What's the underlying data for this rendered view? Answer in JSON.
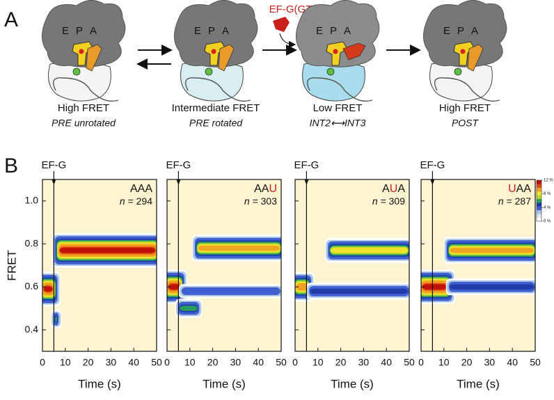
{
  "panel_a": {
    "label": "A",
    "factor": "EF-G(GTP)",
    "site_labels": [
      "E",
      "P",
      "A"
    ],
    "states": [
      {
        "fret": "High FRET",
        "state": "PRE unrotated"
      },
      {
        "fret": "Intermediate FRET",
        "state": "PRE rotated"
      },
      {
        "fret": "Low FRET",
        "state": "INT2⟷INT3"
      },
      {
        "fret": "High FRET",
        "state": "POST"
      }
    ]
  },
  "panel_b_label": "B",
  "colorbar": {
    "colors": [
      "#ffffff",
      "#dde8f4",
      "#a8c4e6",
      "#3d5fcf",
      "#1f3aa8",
      "#27a35a",
      "#b8d830",
      "#f2e52a",
      "#f0a020",
      "#e24a16",
      "#c0100a"
    ],
    "range": [
      0,
      12
    ],
    "ticks": [
      {
        "value": 12,
        "label": "12 %"
      },
      {
        "value": 8,
        "label": "8 %"
      },
      {
        "value": 4,
        "label": "4 %"
      },
      {
        "value": 0,
        "label": "0 %"
      }
    ]
  },
  "chart_data": [
    {
      "type": "heatmap",
      "title": "AAA",
      "highlight": null,
      "annotation": "EF-G",
      "injection_time": 5,
      "n_label": "n",
      "n_text": "= 294",
      "ylabel": "FRET",
      "xlabel": "Time (s)",
      "xlim": [
        0,
        50
      ],
      "ylim": [
        0.3,
        1.1
      ],
      "xticks": [
        0,
        10,
        20,
        30,
        40,
        50
      ],
      "yticks": [
        0.4,
        0.6,
        0.8,
        {
          "value": 1.0,
          "label": "1.0"
        }
      ],
      "populations": [
        {
          "t": [
            0,
            5
          ],
          "fret": 0.59,
          "peak": 12
        },
        {
          "t": [
            5,
            7
          ],
          "fret": 0.45,
          "peak": 6
        },
        {
          "t": [
            7,
            50
          ],
          "fret": 0.77,
          "peak": 12
        }
      ]
    },
    {
      "type": "heatmap",
      "title": "AAU",
      "highlight": 2,
      "annotation": "EF-G",
      "injection_time": 5,
      "n_label": "n",
      "n_text": "= 303",
      "xlabel": "Time (s)",
      "xlim": [
        0,
        50
      ],
      "ylim": [
        0.3,
        1.1
      ],
      "xticks": [
        0,
        10,
        20,
        30,
        40,
        50
      ],
      "populations": [
        {
          "t": [
            0,
            6
          ],
          "fret": 0.6,
          "peak": 12
        },
        {
          "t": [
            5,
            14
          ],
          "fret": 0.5,
          "peak": 6
        },
        {
          "t": [
            6,
            50
          ],
          "fret": 0.58,
          "peak": 4
        },
        {
          "t": [
            13,
            50
          ],
          "fret": 0.78,
          "peak": 9
        }
      ]
    },
    {
      "type": "heatmap",
      "title": "AUA",
      "highlight": 1,
      "annotation": "EF-G",
      "injection_time": 5,
      "n_label": "n",
      "n_text": "= 309",
      "xlabel": "Time (s)",
      "xlim": [
        0,
        50
      ],
      "ylim": [
        0.3,
        1.1
      ],
      "xticks": [
        0,
        10,
        20,
        30,
        40,
        50
      ],
      "populations": [
        {
          "t": [
            0,
            6
          ],
          "fret": 0.6,
          "peak": 10
        },
        {
          "t": [
            6,
            50
          ],
          "fret": 0.58,
          "peak": 5
        },
        {
          "t": [
            15,
            50
          ],
          "fret": 0.77,
          "peak": 8
        }
      ]
    },
    {
      "type": "heatmap",
      "title": "UAA",
      "highlight": 0,
      "annotation": "EF-G",
      "injection_time": 5,
      "n_label": "n",
      "n_text": "= 287",
      "xlabel": "Time (s)",
      "xlim": [
        0,
        50
      ],
      "ylim": [
        0.3,
        1.1
      ],
      "xticks": [
        0,
        10,
        20,
        30,
        40,
        50
      ],
      "populations": [
        {
          "t": [
            0,
            12
          ],
          "fret": 0.6,
          "peak": 12
        },
        {
          "t": [
            12,
            50
          ],
          "fret": 0.6,
          "peak": 5
        },
        {
          "t": [
            12,
            50
          ],
          "fret": 0.77,
          "peak": 9
        }
      ]
    }
  ]
}
